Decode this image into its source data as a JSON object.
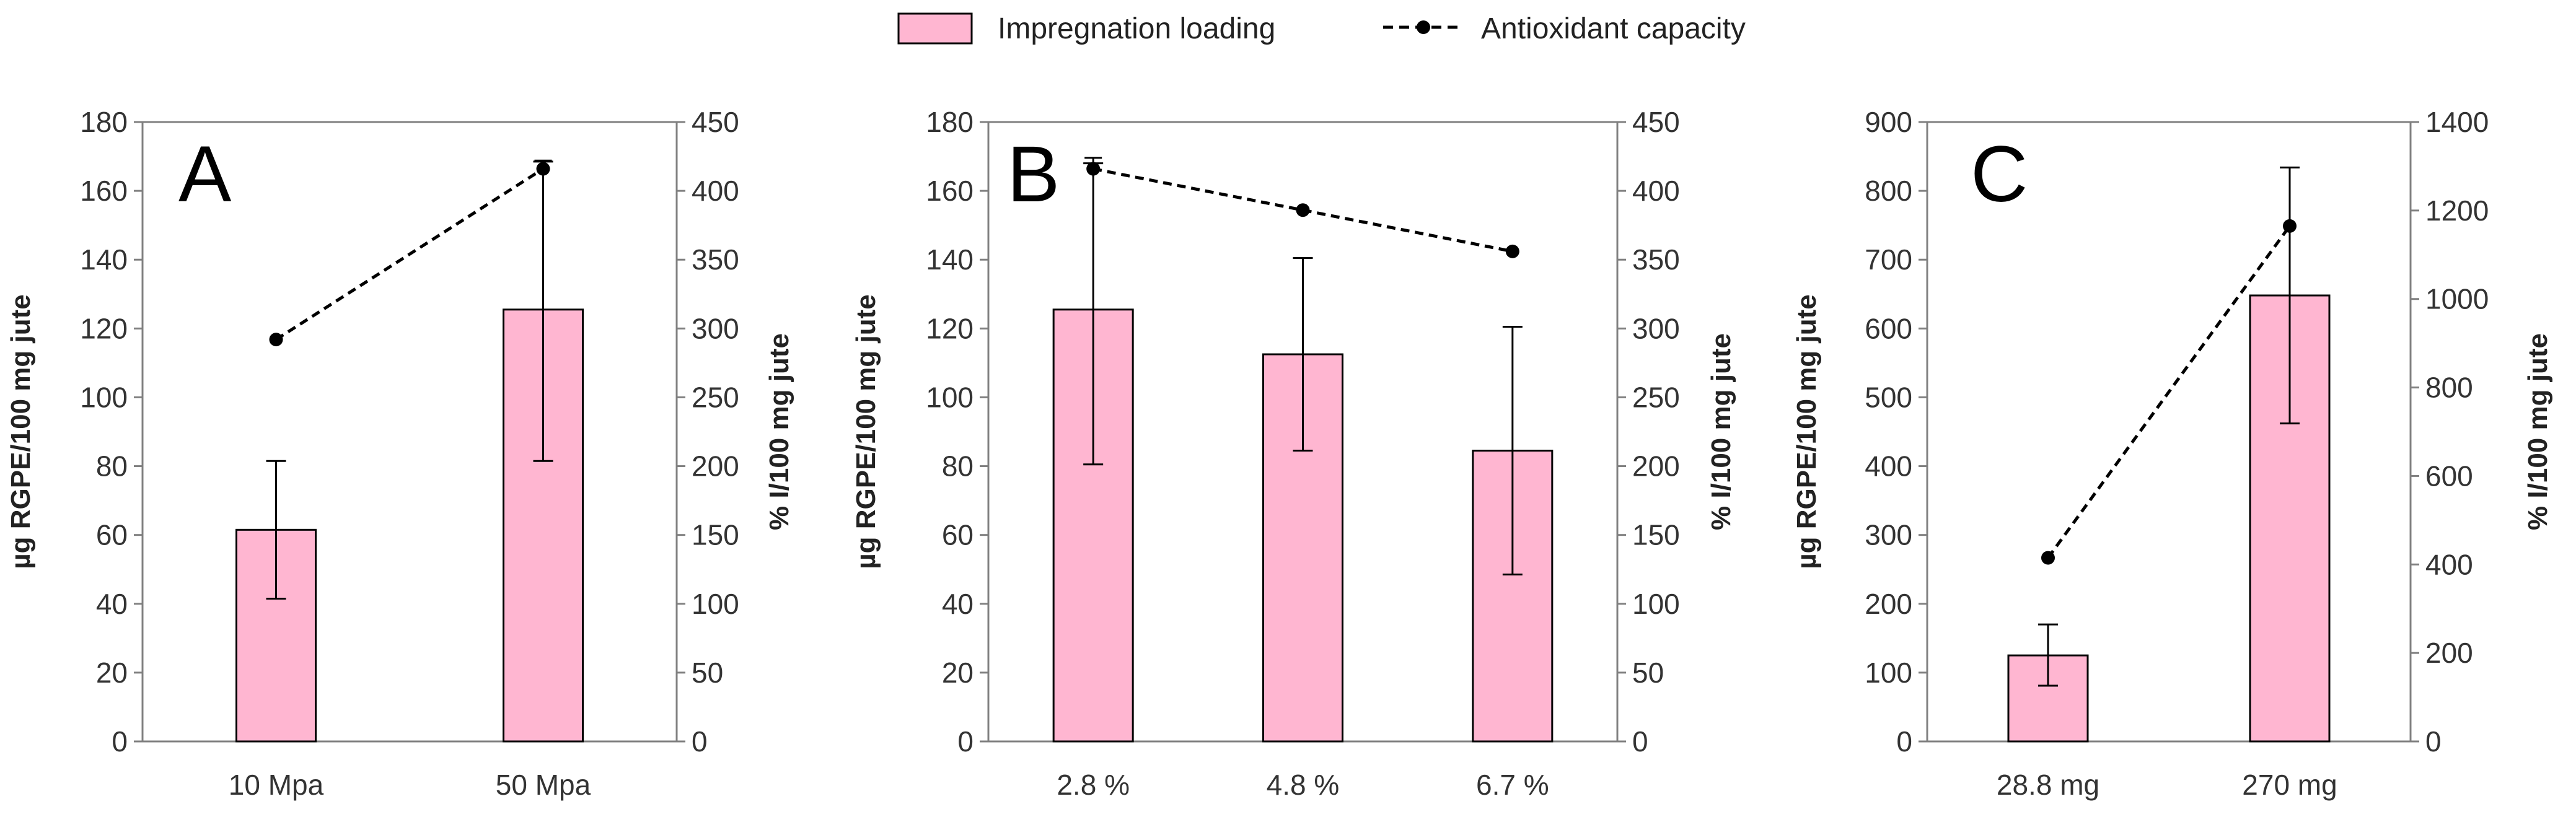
{
  "legend": {
    "bar_label": "Impregnation loading",
    "line_label": "Antioxidant capacity"
  },
  "colors": {
    "bar_fill": "#ffb6d1",
    "bar_stroke": "#000000",
    "line": "#000000",
    "axis": "#808080",
    "text": "#333333"
  },
  "chart_data": [
    {
      "panel_label": "A",
      "type": "bar+line",
      "categories": [
        "10 Mpa",
        "50 Mpa"
      ],
      "series": [
        {
          "name": "Impregnation loading",
          "axis": "left",
          "values": [
            61.5,
            125.5
          ],
          "error_low": [
            41.5,
            81.5
          ],
          "error_high": [
            81.5,
            168.5
          ]
        },
        {
          "name": "Antioxidant capacity",
          "axis": "right",
          "values": [
            292,
            416
          ],
          "error_low": [
            null,
            412
          ],
          "error_high": [
            null,
            422
          ]
        }
      ],
      "y_left": {
        "label": "µg RGPE/100 mg jute",
        "lim": [
          0,
          180
        ],
        "ticks": [
          0,
          20,
          40,
          60,
          80,
          100,
          120,
          140,
          160,
          180
        ]
      },
      "y_right": {
        "label": "% I/100 mg jute",
        "lim": [
          0,
          450
        ],
        "ticks": [
          0,
          50,
          100,
          150,
          200,
          250,
          300,
          350,
          400,
          450
        ]
      }
    },
    {
      "panel_label": "B",
      "type": "bar+line",
      "categories": [
        "2.8 %",
        "4.8 %",
        "6.7 %"
      ],
      "series": [
        {
          "name": "Impregnation loading",
          "axis": "left",
          "values": [
            125.5,
            112.5,
            84.5
          ],
          "error_low": [
            80.5,
            84.5,
            48.5
          ],
          "error_high": [
            168,
            140.5,
            120.5
          ]
        },
        {
          "name": "Antioxidant capacity",
          "axis": "right",
          "values": [
            416,
            386,
            356
          ],
          "error_low": [
            410,
            null,
            null
          ],
          "error_high": [
            424,
            null,
            null
          ]
        }
      ],
      "y_left": {
        "label": "µg RGPE/100 mg jute",
        "lim": [
          0,
          180
        ],
        "ticks": [
          0,
          20,
          40,
          60,
          80,
          100,
          120,
          140,
          160,
          180
        ]
      },
      "y_right": {
        "label": "% I/100 mg jute",
        "lim": [
          0,
          450
        ],
        "ticks": [
          0,
          50,
          100,
          150,
          200,
          250,
          300,
          350,
          400,
          450
        ]
      }
    },
    {
      "panel_label": "C",
      "type": "bar+line",
      "categories": [
        "28.8 mg",
        "270 mg"
      ],
      "series": [
        {
          "name": "Impregnation loading",
          "axis": "left",
          "values": [
            125,
            648
          ],
          "error_low": [
            81,
            462
          ],
          "error_high": [
            170,
            834
          ]
        },
        {
          "name": "Antioxidant capacity",
          "axis": "right",
          "values": [
            415,
            1165
          ],
          "error_low": [
            null,
            null
          ],
          "error_high": [
            null,
            null
          ]
        }
      ],
      "y_left": {
        "label": "µg RGPE/100 mg jute",
        "lim": [
          0,
          900
        ],
        "ticks": [
          0,
          100,
          200,
          300,
          400,
          500,
          600,
          700,
          800,
          900
        ]
      },
      "y_right": {
        "label": "% I/100 mg jute",
        "lim": [
          0,
          1400
        ],
        "ticks": [
          0,
          200,
          400,
          600,
          800,
          1000,
          1200,
          1400
        ]
      }
    }
  ]
}
